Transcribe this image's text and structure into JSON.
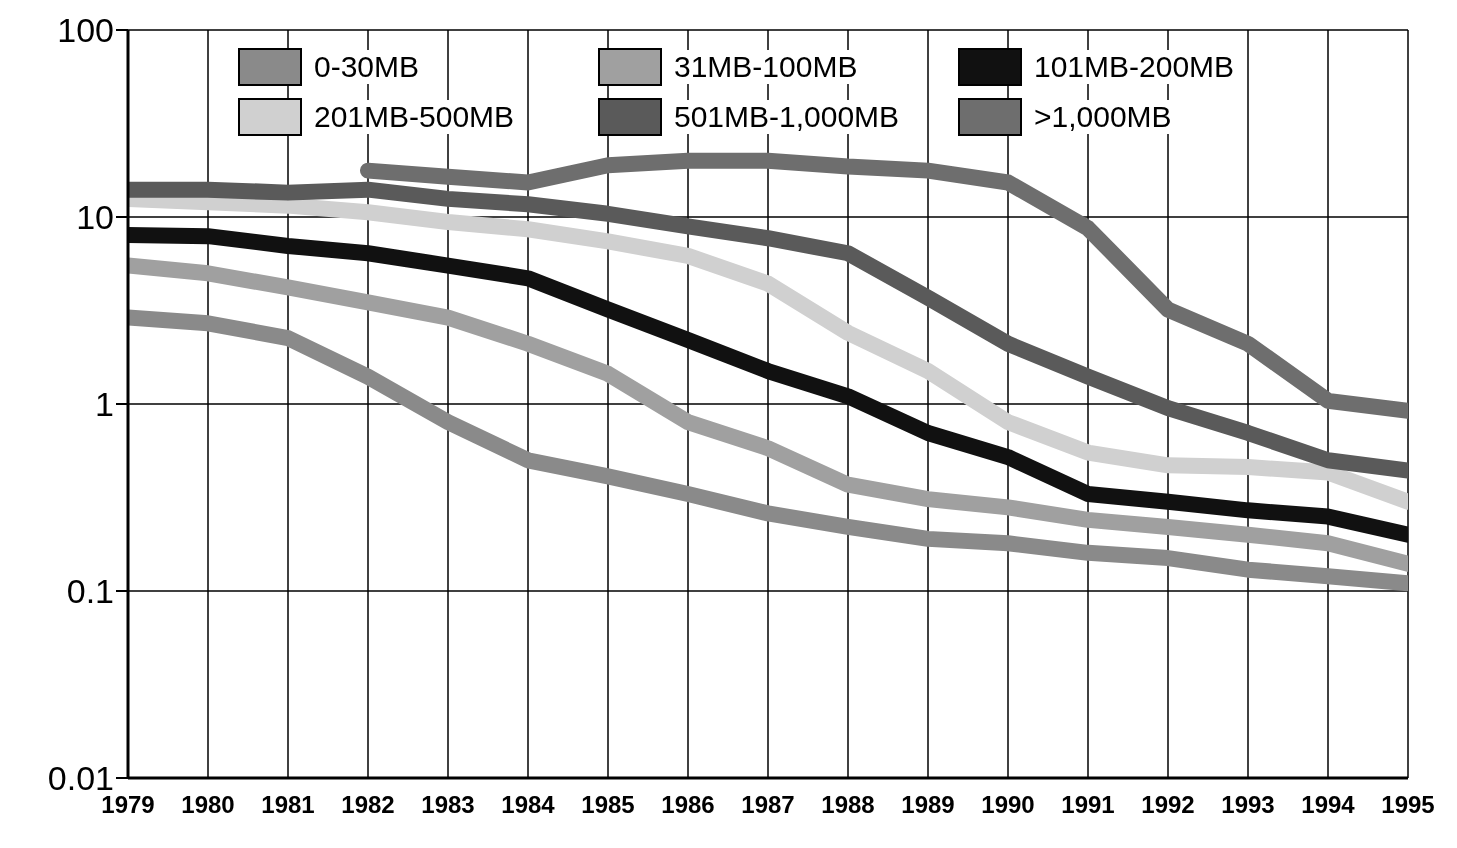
{
  "chart_data": {
    "type": "line",
    "x": [
      1979,
      1980,
      1981,
      1982,
      1983,
      1984,
      1985,
      1986,
      1987,
      1988,
      1989,
      1990,
      1991,
      1992,
      1993,
      1994,
      1995
    ],
    "series": [
      {
        "name": "0-30MB",
        "color": "#8a8a8a",
        "values": [
          2.9,
          2.7,
          2.25,
          1.4,
          0.8,
          0.5,
          0.41,
          0.33,
          0.26,
          0.22,
          0.19,
          0.18,
          0.16,
          0.15,
          0.13,
          0.12,
          0.11
        ]
      },
      {
        "name": "31MB-100MB",
        "color": "#a0a0a0",
        "values": [
          5.5,
          5,
          4.2,
          3.5,
          2.9,
          2.1,
          1.45,
          0.8,
          0.58,
          0.37,
          0.31,
          0.28,
          0.24,
          0.22,
          0.2,
          0.18,
          0.14
        ]
      },
      {
        "name": "101MB-200MB",
        "color": "#111111",
        "values": [
          8,
          7.9,
          7,
          6.4,
          5.5,
          4.7,
          3.2,
          2.2,
          1.5,
          1.1,
          0.7,
          0.52,
          0.33,
          0.3,
          0.27,
          0.25,
          0.2
        ]
      },
      {
        "name": "201MB-500MB",
        "color": "#d0d0d0",
        "values": [
          12.5,
          12,
          11.5,
          10.6,
          9.4,
          8.6,
          7.4,
          6.2,
          4.4,
          2.4,
          1.5,
          0.8,
          0.55,
          0.47,
          0.46,
          0.43,
          0.3
        ]
      },
      {
        "name": "501MB-1,000MB",
        "color": "#5a5a5a",
        "values": [
          14,
          14,
          13.5,
          14,
          12.5,
          11.7,
          10.4,
          8.9,
          7.7,
          6.4,
          3.7,
          2.1,
          1.4,
          0.95,
          0.7,
          0.5,
          0.44
        ]
      },
      {
        "name": ">1,000MB",
        "color": "#6e6e6e",
        "values": [
          null,
          null,
          null,
          17.7,
          16.4,
          15.3,
          18.9,
          20,
          20,
          18.6,
          17.7,
          15.3,
          8.7,
          3.2,
          2.1,
          1.04,
          0.92
        ]
      }
    ],
    "log": "y",
    "xlim": [
      1979,
      1995
    ],
    "xticks": [
      1979,
      1980,
      1981,
      1982,
      1983,
      1984,
      1985,
      1986,
      1987,
      1988,
      1989,
      1990,
      1991,
      1992,
      1993,
      1994,
      1995
    ],
    "ylim": [
      0.01,
      100
    ],
    "yticks": [
      0.01,
      0.1,
      1,
      10,
      100
    ],
    "grid": true,
    "legend": "top",
    "marker": "none",
    "line_style": "solid"
  }
}
